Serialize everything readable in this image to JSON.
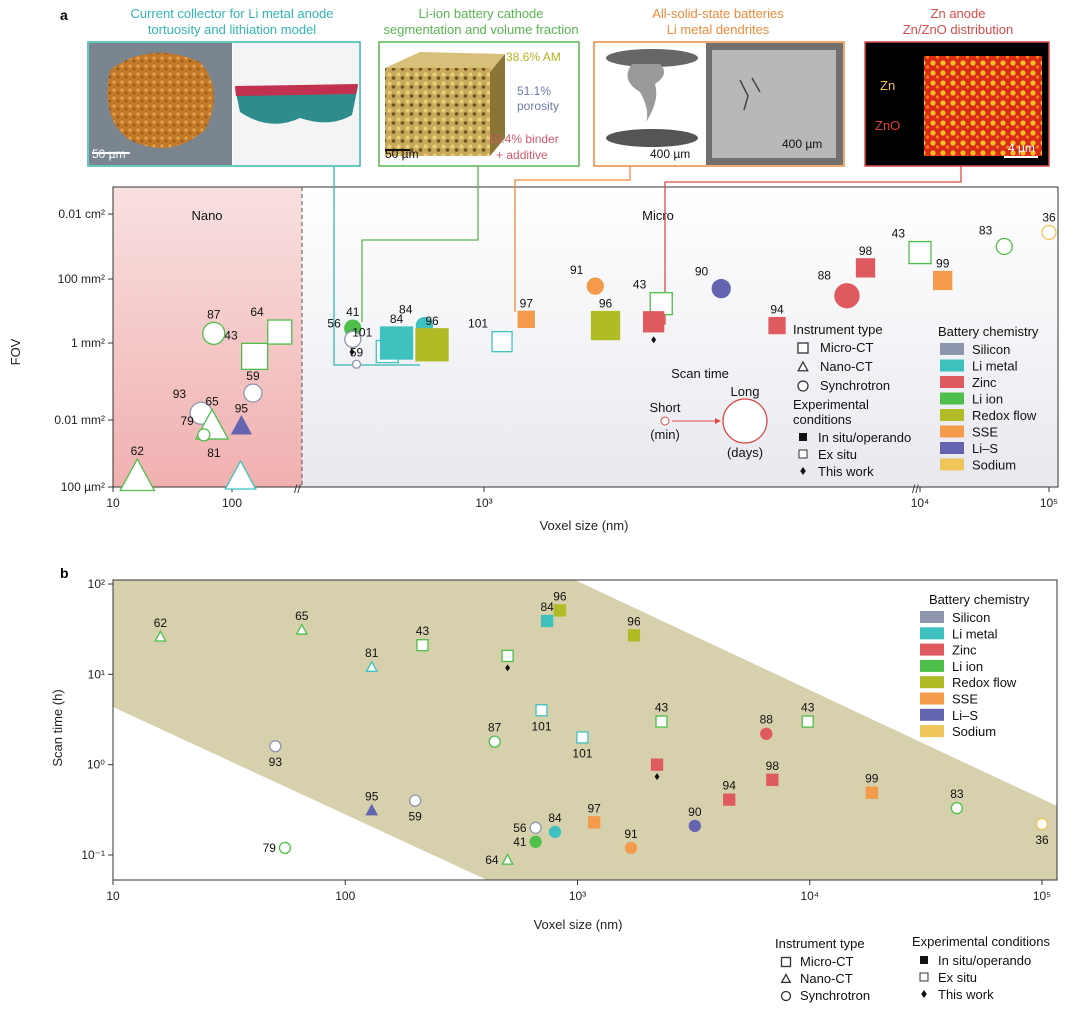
{
  "colors": {
    "Silicon": "#8e96ad",
    "Li metal": "#3fc1c0",
    "Zinc": "#de5a5f",
    "Li ion": "#4dbf4a",
    "Redox flow": "#b1bb25",
    "SSE": "#f39a4b",
    "Li–S": "#6464b0",
    "Sodium": "#f0c65a"
  },
  "panel_a": {
    "letter": "a",
    "insets": [
      {
        "title_line1": "Current collector for Li metal anode",
        "title_line2": "tortuosity and lithiation model",
        "color": "#35b5b0",
        "scalebar": "50 µm"
      },
      {
        "title_line1": "Li-ion battery cathode",
        "title_line2": "segmentation and volume fraction",
        "color": "#5bb453",
        "scalebar": "50 µm",
        "labels": [
          "38.6% AM",
          "51.1%",
          "porosity",
          "10.4% binder",
          "+ additive"
        ]
      },
      {
        "title_line1": "All-solid-state batteries",
        "title_line2": "Li metal dendrites",
        "color": "#ef8a3c",
        "scalebar": "400 µm",
        "scalebar2": "400 µm"
      },
      {
        "title_line1": "Zn anode",
        "title_line2": "Zn/ZnO distribution",
        "color": "#d94b4b",
        "scalebar": "4 µm",
        "labels": [
          "Zn",
          "ZnO"
        ]
      }
    ],
    "region_nano": "Nano",
    "region_micro": "Micro",
    "legend": {
      "instrument_title": "Instrument type",
      "instrument": [
        "Micro-CT",
        "Nano-CT",
        "Synchrotron"
      ],
      "scan_title": "Scan time",
      "scan_short": "Short",
      "scan_short_unit": "(min)",
      "scan_long": "Long",
      "scan_long_unit": "(days)",
      "cond_title_1": "Experimental",
      "cond_title_2": "conditions",
      "conditions": [
        "In situ/operando",
        "Ex situ",
        "This work"
      ],
      "chem_title": "Battery chemistry",
      "chemistry": [
        "Silicon",
        "Li metal",
        "Zinc",
        "Li ion",
        "Redox flow",
        "SSE",
        "Li–S",
        "Sodium"
      ]
    }
  },
  "panel_b": {
    "letter": "b",
    "legend": {
      "chem_title": "Battery chemistry",
      "chemistry": [
        "Silicon",
        "Li metal",
        "Zinc",
        "Li ion",
        "Redox flow",
        "SSE",
        "Li–S",
        "Sodium"
      ],
      "instrument_title": "Instrument type",
      "instrument": [
        "Micro-CT",
        "Nano-CT",
        "Synchrotron"
      ],
      "cond_title": "Experimental conditions",
      "conditions": [
        "In situ/operando",
        "Ex situ",
        "This work"
      ]
    }
  },
  "chart_data": [
    {
      "type": "scatter",
      "xlabel": "Voxel size (nm)",
      "ylabel": "FOV",
      "x_scale": "log",
      "xlim": [
        10,
        100000
      ],
      "y_ticks": [
        "0.01 cm²",
        "100 mm²",
        "1 mm²",
        "0.01 mm²",
        "100 µm²"
      ],
      "x_ticks": [
        "10",
        "100",
        "10³",
        "10⁴",
        "10⁵"
      ],
      "points": [
        {
          "label": "62",
          "x": 16,
          "y_um2": 100,
          "chem": "Li ion",
          "instrument": "Nano-CT",
          "cond": "ex",
          "size": 18
        },
        {
          "label": "93",
          "x": 55,
          "y_um2": 15000,
          "chem": "Silicon",
          "instrument": "Synchrotron",
          "cond": "ex",
          "size": 11
        },
        {
          "label": "65",
          "x": 68,
          "y_um2": 6000,
          "chem": "Li ion",
          "instrument": "Nano-CT",
          "cond": "ex",
          "size": 17
        },
        {
          "label": "79",
          "x": 58,
          "y_um2": 3000,
          "chem": "Li ion",
          "instrument": "Synchrotron",
          "cond": "ex",
          "size": 6
        },
        {
          "label": "95",
          "x": 120,
          "y_um2": 6000,
          "chem": "Li–S",
          "instrument": "Nano-CT",
          "cond": "in",
          "size": 10
        },
        {
          "label": "81",
          "x": 118,
          "y_um2": 100,
          "chem": "Li metal",
          "instrument": "Nano-CT",
          "cond": "ex",
          "size": 16
        },
        {
          "label": "59",
          "x": 150,
          "y_um2": 50000,
          "chem": "Silicon",
          "instrument": "Synchrotron",
          "cond": "ex",
          "size": 9
        },
        {
          "label": "43",
          "x": 155,
          "y_um2": 450000,
          "chem": "Li ion",
          "instrument": "Micro-CT",
          "cond": "ex",
          "size": 13
        },
        {
          "label": "87",
          "x": 240,
          "y_um2": 2000000,
          "chem": "Li ion",
          "instrument": "Synchrotron",
          "cond": "ex",
          "size": 11
        },
        {
          "label": "64",
          "x": 340,
          "y_um2": 2200000,
          "chem": "Li ion",
          "instrument": "Micro-CT",
          "cond": "ex",
          "size": 12
        },
        {
          "label": "41",
          "x": 500,
          "y_um2": 2900000,
          "chem": "Li ion",
          "instrument": "Synchrotron",
          "cond": "in",
          "size": 8
        },
        {
          "label": "56",
          "x": 500,
          "y_um2": 1300000,
          "chem": "Silicon",
          "instrument": "Synchrotron",
          "cond": "ex",
          "size": 8
        },
        {
          "label": "59",
          "x": 510,
          "y_um2": 280000,
          "chem": "Silicon",
          "instrument": "Synchrotron",
          "cond": "ex",
          "size": 4
        },
        {
          "label": "101",
          "x": 600,
          "y_um2": 600000,
          "chem": "Li metal",
          "instrument": "Micro-CT",
          "cond": "ex",
          "size": 11
        },
        {
          "label": "84",
          "x": 630,
          "y_um2": 1000000,
          "chem": "Li metal",
          "instrument": "Micro-CT",
          "cond": "in",
          "size": 16
        },
        {
          "label": "84",
          "x": 730,
          "y_um2": 3500000,
          "chem": "Li metal",
          "instrument": "Synchrotron",
          "cond": "in",
          "size": 8
        },
        {
          "label": "96",
          "x": 760,
          "y_um2": 900000,
          "chem": "Redox flow",
          "instrument": "Micro-CT",
          "cond": "in",
          "size": 16
        },
        {
          "label": "101",
          "x": 1100,
          "y_um2": 1100000,
          "chem": "Li metal",
          "instrument": "Micro-CT",
          "cond": "ex",
          "size": 10
        },
        {
          "label": "97",
          "x": 1250,
          "y_um2": 5500000,
          "chem": "SSE",
          "instrument": "Micro-CT",
          "cond": "in",
          "size": 8
        },
        {
          "label": "91",
          "x": 1800,
          "y_um2": 60000000,
          "chem": "SSE",
          "instrument": "Synchrotron",
          "cond": "in",
          "size": 8
        },
        {
          "label": "96",
          "x": 1900,
          "y_um2": 3500000,
          "chem": "Redox flow",
          "instrument": "Micro-CT",
          "cond": "in",
          "size": 14
        },
        {
          "label": "43",
          "x": 2550,
          "y_um2": 17000000,
          "chem": "Li ion",
          "instrument": "Micro-CT",
          "cond": "ex",
          "size": 11
        },
        {
          "label": "",
          "x": 2450,
          "y_um2": 4600000,
          "chem": "Zinc",
          "instrument": "Micro-CT",
          "cond": "in",
          "size": 10,
          "this_work": true
        },
        {
          "label": "90",
          "x": 3500,
          "y_um2": 50000000,
          "chem": "Li–S",
          "instrument": "Synchrotron",
          "cond": "in",
          "size": 9
        },
        {
          "label": "94",
          "x": 4700,
          "y_um2": 3500000,
          "chem": "Zinc",
          "instrument": "Micro-CT",
          "cond": "in",
          "size": 8
        },
        {
          "label": "88",
          "x": 6800,
          "y_um2": 30000000,
          "chem": "Zinc",
          "instrument": "Synchrotron",
          "cond": "in",
          "size": 12
        },
        {
          "label": "98",
          "x": 7500,
          "y_um2": 220000000,
          "chem": "Zinc",
          "instrument": "Micro-CT",
          "cond": "in",
          "size": 9
        },
        {
          "label": "43",
          "x": 10000,
          "y_um2": 650000000,
          "chem": "Li ion",
          "instrument": "Micro-CT",
          "cond": "ex",
          "size": 11
        },
        {
          "label": "99",
          "x": 15000,
          "y_um2": 90000000,
          "chem": "SSE",
          "instrument": "Micro-CT",
          "cond": "in",
          "size": 9
        },
        {
          "label": "83",
          "x": 45000,
          "y_um2": 1000000000,
          "chem": "Li ion",
          "instrument": "Synchrotron",
          "cond": "ex",
          "size": 8
        },
        {
          "label": "36",
          "x": 100000,
          "y_um2": 2700000000,
          "chem": "Sodium",
          "instrument": "Synchrotron",
          "cond": "ex",
          "size": 7
        }
      ]
    },
    {
      "type": "scatter",
      "xlabel": "Voxel size (nm)",
      "ylabel": "Scan time (h)",
      "x_scale": "log",
      "y_scale": "log",
      "xlim": [
        10,
        100000
      ],
      "ylim": [
        0.06,
        100
      ],
      "x_ticks": [
        "10",
        "100",
        "10³",
        "10⁴",
        "10⁵"
      ],
      "y_ticks": [
        "10²",
        "10¹",
        "10⁰",
        "10⁻¹"
      ],
      "points": [
        {
          "label": "62",
          "x": 16,
          "y": 26,
          "chem": "Li ion",
          "instrument": "Nano-CT",
          "cond": "ex"
        },
        {
          "label": "65",
          "x": 65,
          "y": 31,
          "chem": "Li ion",
          "instrument": "Nano-CT",
          "cond": "ex"
        },
        {
          "label": "43",
          "x": 215,
          "y": 21,
          "chem": "Li ion",
          "instrument": "Micro-CT",
          "cond": "ex"
        },
        {
          "label": "81",
          "x": 130,
          "y": 12,
          "chem": "Li metal",
          "instrument": "Nano-CT",
          "cond": "ex"
        },
        {
          "label": "84",
          "x": 740,
          "y": 39,
          "chem": "Li metal",
          "instrument": "Micro-CT",
          "cond": "in"
        },
        {
          "label": "96",
          "x": 840,
          "y": 51,
          "chem": "Redox flow",
          "instrument": "Micro-CT",
          "cond": "in"
        },
        {
          "label": "96",
          "x": 1750,
          "y": 27,
          "chem": "Redox flow",
          "instrument": "Micro-CT",
          "cond": "in"
        },
        {
          "label": "",
          "x": 500,
          "y": 16,
          "chem": "Li ion",
          "instrument": "Micro-CT",
          "cond": "ex",
          "this_work": true
        },
        {
          "label": "101",
          "x": 700,
          "y": 4.0,
          "chem": "Li metal",
          "instrument": "Micro-CT",
          "cond": "ex"
        },
        {
          "label": "101",
          "x": 1050,
          "y": 2.0,
          "chem": "Li metal",
          "instrument": "Micro-CT",
          "cond": "ex"
        },
        {
          "label": "43",
          "x": 2300,
          "y": 3.0,
          "chem": "Li ion",
          "instrument": "Micro-CT",
          "cond": "ex"
        },
        {
          "label": "87",
          "x": 440,
          "y": 1.8,
          "chem": "Li ion",
          "instrument": "Synchrotron",
          "cond": "ex"
        },
        {
          "label": "93",
          "x": 50,
          "y": 1.6,
          "chem": "Silicon",
          "instrument": "Synchrotron",
          "cond": "ex"
        },
        {
          "label": "88",
          "x": 6500,
          "y": 2.2,
          "chem": "Zinc",
          "instrument": "Synchrotron",
          "cond": "in"
        },
        {
          "label": "43",
          "x": 9800,
          "y": 3.0,
          "chem": "Li ion",
          "instrument": "Micro-CT",
          "cond": "ex"
        },
        {
          "label": "",
          "x": 2200,
          "y": 1.0,
          "chem": "Zinc",
          "instrument": "Micro-CT",
          "cond": "in",
          "this_work": true
        },
        {
          "label": "98",
          "x": 6900,
          "y": 0.68,
          "chem": "Zinc",
          "instrument": "Micro-CT",
          "cond": "in"
        },
        {
          "label": "99",
          "x": 18500,
          "y": 0.49,
          "chem": "SSE",
          "instrument": "Micro-CT",
          "cond": "in"
        },
        {
          "label": "94",
          "x": 4500,
          "y": 0.41,
          "chem": "Zinc",
          "instrument": "Micro-CT",
          "cond": "in"
        },
        {
          "label": "95",
          "x": 130,
          "y": 0.31,
          "chem": "Li–S",
          "instrument": "Nano-CT",
          "cond": "in"
        },
        {
          "label": "59",
          "x": 200,
          "y": 0.4,
          "chem": "Silicon",
          "instrument": "Synchrotron",
          "cond": "ex"
        },
        {
          "label": "83",
          "x": 43000,
          "y": 0.33,
          "chem": "Li ion",
          "instrument": "Synchrotron",
          "cond": "ex"
        },
        {
          "label": "36",
          "x": 100000,
          "y": 0.22,
          "chem": "Sodium",
          "instrument": "Synchrotron",
          "cond": "ex"
        },
        {
          "label": "97",
          "x": 1180,
          "y": 0.23,
          "chem": "SSE",
          "instrument": "Micro-CT",
          "cond": "in"
        },
        {
          "label": "90",
          "x": 3200,
          "y": 0.21,
          "chem": "Li–S",
          "instrument": "Synchrotron",
          "cond": "in"
        },
        {
          "label": "56",
          "x": 660,
          "y": 0.2,
          "chem": "Silicon",
          "instrument": "Synchrotron",
          "cond": "ex"
        },
        {
          "label": "84",
          "x": 800,
          "y": 0.18,
          "chem": "Li metal",
          "instrument": "Synchrotron",
          "cond": "in"
        },
        {
          "label": "41",
          "x": 660,
          "y": 0.14,
          "chem": "Li ion",
          "instrument": "Synchrotron",
          "cond": "in"
        },
        {
          "label": "91",
          "x": 1700,
          "y": 0.12,
          "chem": "SSE",
          "instrument": "Synchrotron",
          "cond": "in"
        },
        {
          "label": "79",
          "x": 55,
          "y": 0.12,
          "chem": "Li ion",
          "instrument": "Synchrotron",
          "cond": "ex"
        },
        {
          "label": "64",
          "x": 500,
          "y": 0.088,
          "chem": "Li ion",
          "instrument": "Nano-CT",
          "cond": "ex"
        }
      ]
    }
  ]
}
